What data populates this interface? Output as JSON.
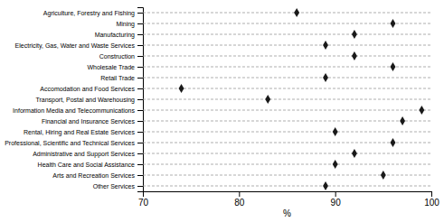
{
  "chart_data": {
    "type": "dot",
    "orientation": "horizontal",
    "categories": [
      "Agriculture, Forestry and Fishing",
      "Mining",
      "Manufacturing",
      "Electricity, Gas, Water and Waste Services",
      "Construction",
      "Wholesale Trade",
      "Retail Trade",
      "Accomodation and Food Services",
      "Transport, Postal and Warehousing",
      "Information Media and Telecommunications",
      "Financial and Insurance Services",
      "Rental, Hiring and Real Estate Services",
      "Professional, Scientific and Technical Services",
      "Administrative and Support Services",
      "Health Care and Social Assistance",
      "Arts and Recreation Services",
      "Other Services"
    ],
    "values": [
      86,
      96,
      92,
      89,
      92,
      96,
      89,
      74,
      83,
      99,
      97,
      90,
      96,
      92,
      90,
      95,
      89
    ],
    "xlim": [
      70,
      100
    ],
    "xticks": [
      70,
      80,
      90,
      100
    ],
    "xlabel": "%",
    "color": "#1a1a1a",
    "marker": "diamond",
    "line_style": "dashed",
    "grid": false
  }
}
